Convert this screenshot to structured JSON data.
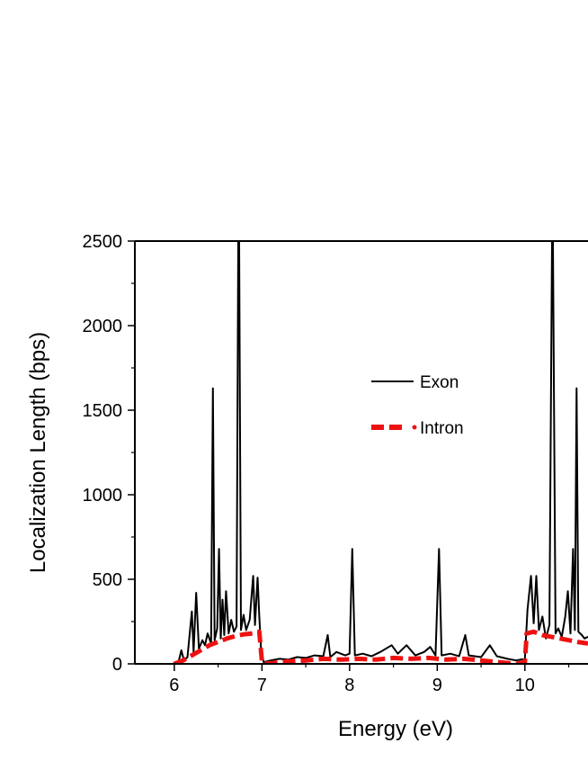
{
  "chart_data": {
    "type": "line",
    "xlabel": "Energy (eV)",
    "ylabel": "Localization Length (bps)",
    "xlim": [
      5.55,
      10.72
    ],
    "ylim": [
      0,
      2500
    ],
    "x_ticks": [
      "6",
      "7",
      "8",
      "9",
      "10"
    ],
    "x_tick_values": [
      6,
      7,
      8,
      9,
      10
    ],
    "y_ticks": [
      "0",
      "500",
      "1000",
      "1500",
      "2000",
      "2500"
    ],
    "y_tick_values": [
      0,
      500,
      1000,
      1500,
      2000,
      2500
    ],
    "grid": false,
    "legend_position": "center",
    "series": [
      {
        "name": "Exon",
        "color": "#000000",
        "style": "solid",
        "points": [
          [
            5.98,
            0
          ],
          [
            6.05,
            15
          ],
          [
            6.08,
            80
          ],
          [
            6.11,
            20
          ],
          [
            6.15,
            40
          ],
          [
            6.2,
            310
          ],
          [
            6.22,
            70
          ],
          [
            6.25,
            420
          ],
          [
            6.28,
            90
          ],
          [
            6.32,
            140
          ],
          [
            6.35,
            110
          ],
          [
            6.38,
            180
          ],
          [
            6.42,
            120
          ],
          [
            6.44,
            1630
          ],
          [
            6.46,
            140
          ],
          [
            6.49,
            210
          ],
          [
            6.51,
            680
          ],
          [
            6.53,
            150
          ],
          [
            6.55,
            380
          ],
          [
            6.57,
            170
          ],
          [
            6.59,
            430
          ],
          [
            6.62,
            180
          ],
          [
            6.65,
            260
          ],
          [
            6.68,
            190
          ],
          [
            6.71,
            220
          ],
          [
            6.73,
            2500
          ],
          [
            6.74,
            2500
          ],
          [
            6.76,
            200
          ],
          [
            6.79,
            290
          ],
          [
            6.82,
            200
          ],
          [
            6.86,
            260
          ],
          [
            6.9,
            520
          ],
          [
            6.92,
            230
          ],
          [
            6.95,
            510
          ],
          [
            6.97,
            280
          ],
          [
            6.99,
            80
          ],
          [
            7.02,
            10
          ],
          [
            7.1,
            20
          ],
          [
            7.2,
            30
          ],
          [
            7.3,
            25
          ],
          [
            7.4,
            40
          ],
          [
            7.5,
            35
          ],
          [
            7.6,
            50
          ],
          [
            7.7,
            45
          ],
          [
            7.75,
            170
          ],
          [
            7.78,
            40
          ],
          [
            7.85,
            70
          ],
          [
            7.95,
            50
          ],
          [
            8.0,
            60
          ],
          [
            8.03,
            680
          ],
          [
            8.06,
            50
          ],
          [
            8.15,
            60
          ],
          [
            8.25,
            45
          ],
          [
            8.35,
            70
          ],
          [
            8.48,
            110
          ],
          [
            8.55,
            60
          ],
          [
            8.65,
            110
          ],
          [
            8.75,
            50
          ],
          [
            8.85,
            70
          ],
          [
            8.92,
            100
          ],
          [
            8.98,
            50
          ],
          [
            9.02,
            680
          ],
          [
            9.05,
            50
          ],
          [
            9.15,
            60
          ],
          [
            9.25,
            45
          ],
          [
            9.32,
            170
          ],
          [
            9.36,
            50
          ],
          [
            9.5,
            40
          ],
          [
            9.6,
            110
          ],
          [
            9.68,
            45
          ],
          [
            9.8,
            30
          ],
          [
            9.9,
            20
          ],
          [
            10.0,
            30
          ],
          [
            10.03,
            320
          ],
          [
            10.07,
            520
          ],
          [
            10.1,
            240
          ],
          [
            10.13,
            520
          ],
          [
            10.16,
            200
          ],
          [
            10.2,
            280
          ],
          [
            10.24,
            150
          ],
          [
            10.28,
            230
          ],
          [
            10.31,
            2500
          ],
          [
            10.32,
            2500
          ],
          [
            10.35,
            180
          ],
          [
            10.38,
            210
          ],
          [
            10.42,
            160
          ],
          [
            10.46,
            280
          ],
          [
            10.49,
            430
          ],
          [
            10.52,
            180
          ],
          [
            10.55,
            680
          ],
          [
            10.57,
            200
          ],
          [
            10.59,
            1630
          ],
          [
            10.61,
            190
          ],
          [
            10.65,
            170
          ],
          [
            10.68,
            150
          ],
          [
            10.72,
            160
          ]
        ]
      },
      {
        "name": "Intron",
        "color": "#ee1111",
        "style": "dashed",
        "points": [
          [
            6.0,
            0
          ],
          [
            6.1,
            20
          ],
          [
            6.2,
            50
          ],
          [
            6.3,
            80
          ],
          [
            6.4,
            110
          ],
          [
            6.5,
            130
          ],
          [
            6.6,
            150
          ],
          [
            6.7,
            165
          ],
          [
            6.8,
            175
          ],
          [
            6.9,
            180
          ],
          [
            6.97,
            190
          ],
          [
            7.0,
            10
          ],
          [
            7.02,
            0
          ],
          [
            7.3,
            15
          ],
          [
            7.5,
            20
          ],
          [
            7.7,
            30
          ],
          [
            7.9,
            25
          ],
          [
            8.1,
            30
          ],
          [
            8.3,
            25
          ],
          [
            8.5,
            35
          ],
          [
            8.7,
            30
          ],
          [
            8.9,
            35
          ],
          [
            9.1,
            25
          ],
          [
            9.3,
            30
          ],
          [
            9.5,
            20
          ],
          [
            9.7,
            10
          ],
          [
            9.9,
            0
          ],
          [
            10.0,
            10
          ],
          [
            10.02,
            180
          ],
          [
            10.1,
            190
          ],
          [
            10.2,
            170
          ],
          [
            10.3,
            160
          ],
          [
            10.4,
            150
          ],
          [
            10.5,
            140
          ],
          [
            10.6,
            130
          ],
          [
            10.72,
            120
          ]
        ]
      }
    ]
  }
}
